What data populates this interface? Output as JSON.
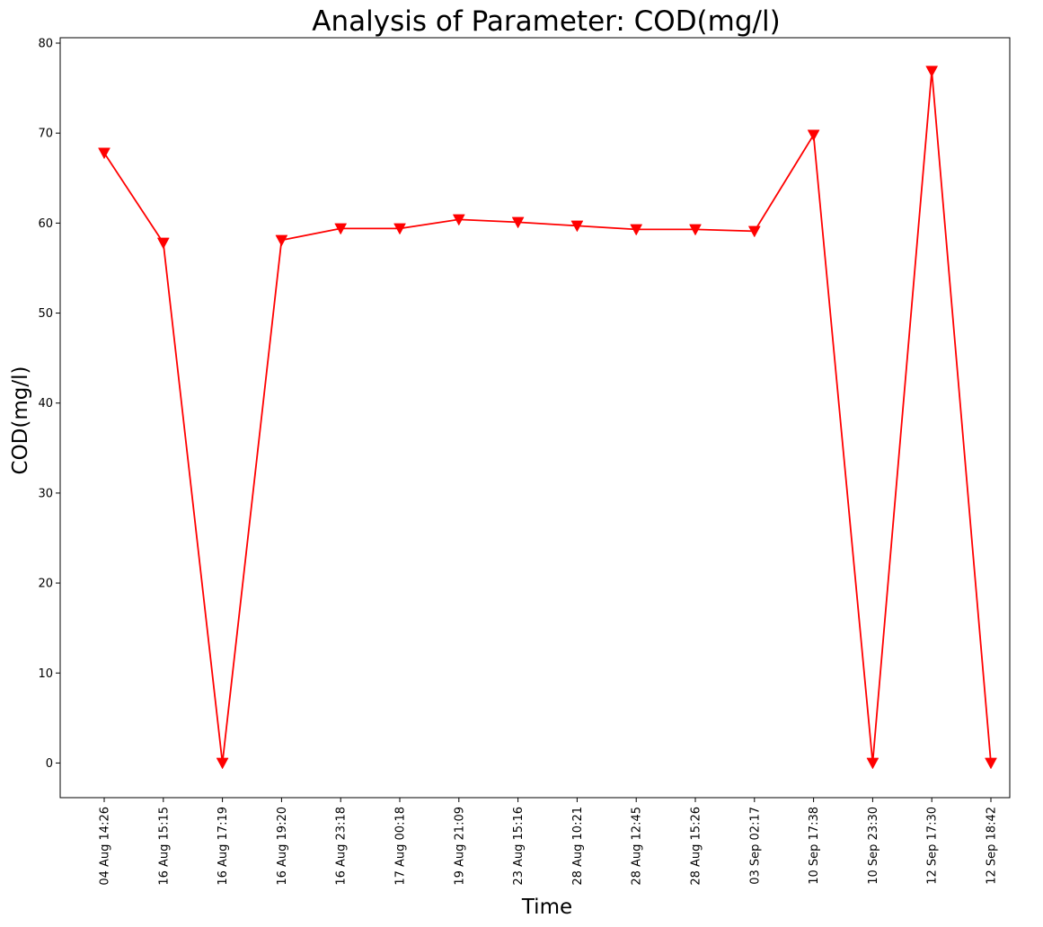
{
  "chart_data": {
    "type": "line",
    "title": "Analysis of Parameter: COD(mg/l)",
    "xlabel": "Time",
    "ylabel": "COD(mg/l)",
    "categories": [
      "04 Aug 14:26",
      "16 Aug 15:15",
      "16 Aug 17:19",
      "16 Aug 19:20",
      "16 Aug 23:18",
      "17 Aug 00:18",
      "19 Aug 21:09",
      "23 Aug 15:16",
      "28 Aug 10:21",
      "28 Aug 12:45",
      "28 Aug 15:26",
      "03 Sep 02:17",
      "10 Sep 17:38",
      "10 Sep 23:30",
      "12 Sep 17:30",
      "12 Sep 18:42"
    ],
    "series": [
      {
        "values": [
          67.8,
          57.8,
          0,
          58.1,
          59.4,
          59.4,
          60.4,
          60.1,
          59.7,
          59.3,
          59.3,
          59.1,
          69.8,
          0,
          76.9,
          0
        ],
        "color": "#ff0000",
        "marker": "triangle-down"
      }
    ],
    "ylim": [
      -3.85,
      80.6
    ],
    "yticks": [
      0,
      10,
      20,
      30,
      40,
      50,
      60,
      70,
      80
    ],
    "grid": false,
    "legend": "none"
  }
}
